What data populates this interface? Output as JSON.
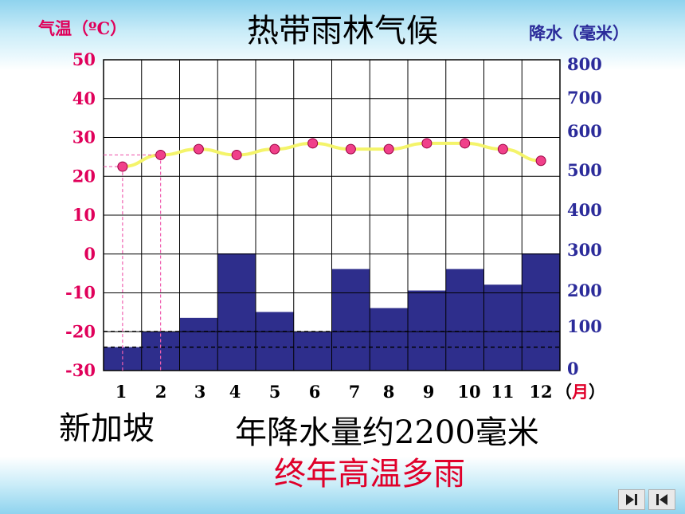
{
  "title": "热带雨林气候",
  "left_axis_label": "气温（ºC）",
  "right_axis_label": "降水（毫米）",
  "month_unit": "（月）",
  "city": "新加坡",
  "annual_precip_text": "年降水量约2200毫米",
  "summary": "终年高温多雨",
  "colors": {
    "temperature": "#e0005a",
    "precipitation": "#2b2b9a",
    "bar": "#2e2e8c",
    "line": "#f4f46a"
  },
  "chart_data": {
    "type": "bar",
    "title": "热带雨林气候",
    "categories": [
      "1",
      "2",
      "3",
      "4",
      "5",
      "6",
      "7",
      "8",
      "9",
      "10",
      "11",
      "12"
    ],
    "xlabel": "（月）",
    "series": [
      {
        "kind": "bar",
        "axis": "right",
        "values": [
          60,
          100,
          135,
          300,
          150,
          100,
          260,
          160,
          205,
          260,
          220,
          300
        ]
      },
      {
        "kind": "line",
        "axis": "left",
        "values": [
          22.5,
          25.5,
          27,
          25.5,
          27,
          28.5,
          27,
          27,
          28.5,
          28.5,
          27,
          24
        ]
      }
    ],
    "y_left": {
      "label": "气温（ºC）",
      "ticks": [
        "50",
        "40",
        "30",
        "20",
        "10",
        "0",
        "-10",
        "-20",
        "-30"
      ],
      "range": [
        -30,
        50
      ]
    },
    "y_right": {
      "label": "降水（毫米）",
      "ticks": [
        "800",
        "700",
        "600",
        "500",
        "400",
        "300",
        "200",
        "100",
        "0"
      ]
    },
    "grid": true
  },
  "nav": {
    "next_icon": "skip-next-icon",
    "prev_icon": "skip-previous-icon"
  }
}
